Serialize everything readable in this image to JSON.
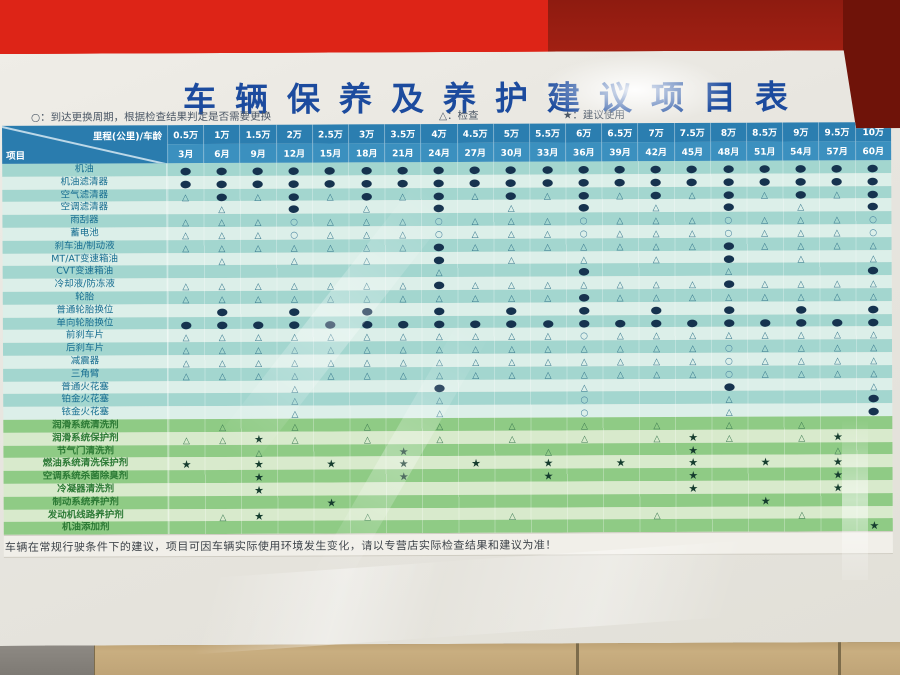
{
  "poster": {
    "title": "车辆保养及养护建议项目表",
    "legend": {
      "cutoff_char": "换",
      "replace_cycle": "○：到达更换周期，根据检查结果判定是否需要更换",
      "inspect": "△：检查",
      "recommend": "★：建议使用"
    },
    "corner": {
      "top": "里程(公里)/车龄",
      "bottom": "项目"
    },
    "note": "车辆在常规行驶条件下的建议，项目可因车辆实际使用环境发生变化，请以专营店实际检查结果和建议为准！"
  },
  "chart_data": {
    "type": "table",
    "legend_symbols": {
      "●": "更换",
      "○": "到达更换周期，根据检查结果判定是否需要更换",
      "△": "检查",
      "★": "建议使用"
    },
    "columns": [
      {
        "mileage": "0.5万",
        "age": "3月"
      },
      {
        "mileage": "1万",
        "age": "6月"
      },
      {
        "mileage": "1.5万",
        "age": "9月"
      },
      {
        "mileage": "2万",
        "age": "12月"
      },
      {
        "mileage": "2.5万",
        "age": "15月"
      },
      {
        "mileage": "3万",
        "age": "18月"
      },
      {
        "mileage": "3.5万",
        "age": "21月"
      },
      {
        "mileage": "4万",
        "age": "24月"
      },
      {
        "mileage": "4.5万",
        "age": "27月"
      },
      {
        "mileage": "5万",
        "age": "30月"
      },
      {
        "mileage": "5.5万",
        "age": "33月"
      },
      {
        "mileage": "6万",
        "age": "36月"
      },
      {
        "mileage": "6.5万",
        "age": "39月"
      },
      {
        "mileage": "7万",
        "age": "42月"
      },
      {
        "mileage": "7.5万",
        "age": "45月"
      },
      {
        "mileage": "8万",
        "age": "48月"
      },
      {
        "mileage": "8.5万",
        "age": "51月"
      },
      {
        "mileage": "9万",
        "age": "54月"
      },
      {
        "mileage": "9.5万",
        "age": "57月"
      },
      {
        "mileage": "10万",
        "age": "60月"
      }
    ],
    "rows": [
      {
        "label": "机油",
        "zone": "blue",
        "marks": "●●●●●●●●●●●●●●●●●●●●"
      },
      {
        "label": "机油滤清器",
        "zone": "blue",
        "marks": "●●●●●●●●●●●●●●●●●●●●"
      },
      {
        "label": "空气滤清器",
        "zone": "blue",
        "marks": "△●△●△●△●△●△●△●△●△●△●"
      },
      {
        "label": "空调滤清器",
        "zone": "blue",
        "marks": ".△.●.△.●.△.●.△.●.△.●"
      },
      {
        "label": "雨刮器",
        "zone": "blue",
        "marks": "△△△○△△△○△△△○△△△○△△△○"
      },
      {
        "label": "蓄电池",
        "zone": "blue",
        "marks": "△△△○△△△○△△△○△△△○△△△○"
      },
      {
        "label": "刹车油/制动液",
        "zone": "blue",
        "marks": "△△△△△△△●△△△△△△△●△△△△"
      },
      {
        "label": "MT/AT变速箱油",
        "zone": "blue",
        "marks": ".△.△.△.●.△.△.△.●.△.△"
      },
      {
        "label": "CVT变速箱油",
        "zone": "blue",
        "marks": ".......△...●...△...●"
      },
      {
        "label": "冷却液/防冻液",
        "zone": "blue",
        "marks": "△△△△△△△●△△△△△△△●△△△△"
      },
      {
        "label": "轮胎",
        "zone": "blue",
        "marks": "△△△△△△△△△△△●△△△△△△△△"
      },
      {
        "label": "普通轮胎换位",
        "zone": "blue",
        "marks": ".●.●.●.●.●.●.●.●.●.●"
      },
      {
        "label": "单向轮胎换位",
        "zone": "blue",
        "marks": "●●●●●●●●●●●●●●●●●●●●"
      },
      {
        "label": "前刹车片",
        "zone": "blue",
        "marks": "△△△△△△△△△△△○△△△△△△△△"
      },
      {
        "label": "后刹车片",
        "zone": "blue",
        "marks": "△△△△△△△△△△△△△△△○△△△△"
      },
      {
        "label": "减震器",
        "zone": "blue",
        "marks": "△△△△△△△△△△△△△△△○△△△△"
      },
      {
        "label": "三角臂",
        "zone": "blue",
        "marks": "△△△△△△△△△△△△△△△○△△△△"
      },
      {
        "label": "普通火花塞",
        "zone": "blue",
        "marks": "...△...●...△...●...△"
      },
      {
        "label": "铂金火花塞",
        "zone": "blue",
        "marks": "...△...△...○...△...●"
      },
      {
        "label": "铱金火花塞",
        "zone": "blue",
        "marks": "...△...△...○...△...●"
      },
      {
        "label": "润滑系统清洗剂",
        "zone": "green",
        "marks": ".△.△.△.△.△.△.△.△.△.."
      },
      {
        "label": "润滑系统保护剂",
        "zone": "green",
        "marks": "△△★△.△.△.△.△.△★△.△★."
      },
      {
        "label": "节气门清洗剂",
        "zone": "green",
        "marks": "..△...★...△...★...△."
      },
      {
        "label": "燃油系统清洗保护剂",
        "zone": "green",
        "marks": "★.★.★.★.★.★.★.★.★.★."
      },
      {
        "label": "空调系统杀菌除臭剂",
        "zone": "green",
        "marks": "..★...★...★...★...★."
      },
      {
        "label": "冷凝器清洗剂",
        "zone": "green",
        "marks": "..★...........★...★."
      },
      {
        "label": "制动系统养护剂",
        "zone": "green",
        "marks": "....★...........★..."
      },
      {
        "label": "发动机线路养护剂",
        "zone": "green",
        "marks": ".△★..△...△...△...△.."
      },
      {
        "label": "机油添加剂",
        "zone": "green",
        "marks": "...................★"
      }
    ]
  },
  "colors": {
    "wall_red": "#dd2417",
    "wall_red_dark": "#8e1b10",
    "wood_counter": "#c9ae80",
    "poster_paper": "#e7e5df",
    "title_blue": "#1c4b9e",
    "header_blue": "#2b7eb0",
    "row_teal": "#a3d6cf",
    "row_teal_light": "#dcefe9",
    "row_green": "#8fcb85",
    "row_green_light": "#d8eacc",
    "mark_navy": "#16334f",
    "mark_star_green": "#153c2e"
  }
}
